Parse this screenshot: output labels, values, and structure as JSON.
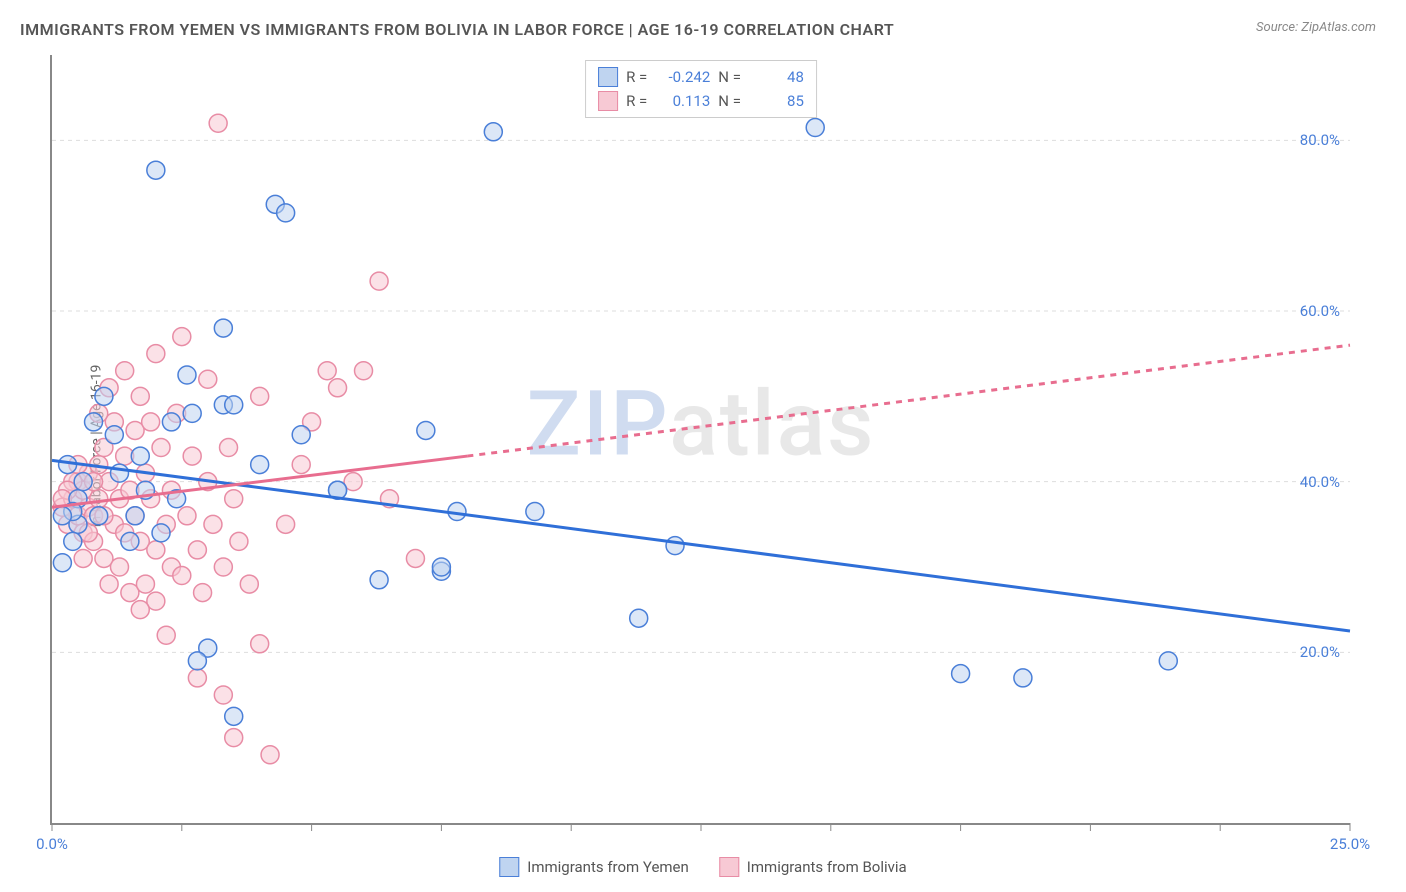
{
  "title": "IMMIGRANTS FROM YEMEN VS IMMIGRANTS FROM BOLIVIA IN LABOR FORCE | AGE 16-19 CORRELATION CHART",
  "source": "Source: ZipAtlas.com",
  "y_axis_label": "In Labor Force | Age 16-19",
  "watermark_prefix": "ZIP",
  "watermark_suffix": "atlas",
  "xlim": [
    0,
    25
  ],
  "ylim": [
    0,
    90
  ],
  "x_ticks": [
    0.0,
    25.0
  ],
  "x_tick_labels": [
    "0.0%",
    "25.0%"
  ],
  "y_ticks": [
    20.0,
    40.0,
    60.0,
    80.0
  ],
  "y_tick_labels": [
    "20.0%",
    "40.0%",
    "60.0%",
    "80.0%"
  ],
  "gridlines_y": [
    20.0,
    40.0,
    60.0,
    80.0
  ],
  "series": {
    "yemen": {
      "label": "Immigrants from Yemen",
      "color_fill": "#bfd4f0",
      "color_stroke": "#4a7fd8",
      "R": "-0.242",
      "N": "48",
      "marker_radius": 9,
      "marker_fill_alpha": 0.55,
      "trend_color": "#2f6fd8",
      "trend_solid_xrange": [
        0.0,
        25.0
      ],
      "trend_solid_yrange": [
        42.5,
        22.5
      ],
      "trend_dashed_xrange": null,
      "points": [
        [
          0.2,
          30.5
        ],
        [
          0.5,
          35.0
        ],
        [
          0.3,
          42.0
        ],
        [
          0.5,
          38.0
        ],
        [
          0.8,
          47.0
        ],
        [
          0.4,
          33.0
        ],
        [
          1.2,
          45.5
        ],
        [
          1.0,
          50.0
        ],
        [
          1.5,
          33.0
        ],
        [
          1.6,
          36.0
        ],
        [
          1.8,
          39.0
        ],
        [
          2.0,
          76.5
        ],
        [
          2.3,
          47.0
        ],
        [
          2.6,
          52.5
        ],
        [
          2.7,
          48.0
        ],
        [
          3.0,
          20.5
        ],
        [
          3.3,
          58.0
        ],
        [
          3.3,
          49.0
        ],
        [
          3.5,
          49.0
        ],
        [
          3.5,
          12.5
        ],
        [
          2.8,
          19.0
        ],
        [
          4.3,
          72.5
        ],
        [
          4.5,
          71.5
        ],
        [
          4.0,
          42.0
        ],
        [
          4.8,
          45.5
        ],
        [
          5.5,
          39.0
        ],
        [
          5.5,
          39.0
        ],
        [
          6.3,
          28.5
        ],
        [
          7.2,
          46.0
        ],
        [
          7.5,
          29.5
        ],
        [
          7.5,
          30.0
        ],
        [
          7.8,
          36.5
        ],
        [
          8.5,
          81.0
        ],
        [
          9.3,
          36.5
        ],
        [
          11.3,
          24.0
        ],
        [
          12.0,
          32.5
        ],
        [
          14.7,
          81.5
        ],
        [
          17.5,
          17.5
        ],
        [
          18.7,
          17.0
        ],
        [
          21.5,
          19.0
        ],
        [
          0.6,
          40.0
        ],
        [
          0.9,
          36.0
        ],
        [
          1.3,
          41.0
        ],
        [
          1.7,
          43.0
        ],
        [
          0.4,
          36.5
        ],
        [
          2.1,
          34.0
        ],
        [
          2.4,
          38.0
        ],
        [
          0.2,
          36.0
        ]
      ]
    },
    "bolivia": {
      "label": "Immigrants from Bolivia",
      "color_fill": "#f7c9d4",
      "color_stroke": "#e88ca5",
      "R": "0.113",
      "N": "85",
      "marker_radius": 9,
      "marker_fill_alpha": 0.55,
      "trend_color": "#e86d8f",
      "trend_solid_xrange": [
        0.0,
        8.0
      ],
      "trend_solid_yrange": [
        37.0,
        43.0
      ],
      "trend_dashed_xrange": [
        8.0,
        25.0
      ],
      "trend_dashed_yrange": [
        43.0,
        56.0
      ],
      "points": [
        [
          0.2,
          37.0
        ],
        [
          0.3,
          35.0
        ],
        [
          0.4,
          38.0
        ],
        [
          0.5,
          36.0
        ],
        [
          0.5,
          40.0
        ],
        [
          0.6,
          34.0
        ],
        [
          0.6,
          39.0
        ],
        [
          0.7,
          37.0
        ],
        [
          0.7,
          41.0
        ],
        [
          0.8,
          33.0
        ],
        [
          0.8,
          36.0
        ],
        [
          0.9,
          38.0
        ],
        [
          0.9,
          42.0
        ],
        [
          1.0,
          31.0
        ],
        [
          1.0,
          44.0
        ],
        [
          1.1,
          28.0
        ],
        [
          1.1,
          40.0
        ],
        [
          1.2,
          35.0
        ],
        [
          1.2,
          47.0
        ],
        [
          1.3,
          30.0
        ],
        [
          1.3,
          38.0
        ],
        [
          1.4,
          34.0
        ],
        [
          1.4,
          43.0
        ],
        [
          1.5,
          27.0
        ],
        [
          1.5,
          39.0
        ],
        [
          1.6,
          46.0
        ],
        [
          1.6,
          36.0
        ],
        [
          1.7,
          33.0
        ],
        [
          1.7,
          50.0
        ],
        [
          1.8,
          28.0
        ],
        [
          1.8,
          41.0
        ],
        [
          1.9,
          38.0
        ],
        [
          2.0,
          26.0
        ],
        [
          2.0,
          32.0
        ],
        [
          2.0,
          55.0
        ],
        [
          2.1,
          44.0
        ],
        [
          2.2,
          35.0
        ],
        [
          2.3,
          30.0
        ],
        [
          2.3,
          39.0
        ],
        [
          2.4,
          48.0
        ],
        [
          2.5,
          29.0
        ],
        [
          2.5,
          57.0
        ],
        [
          2.6,
          36.0
        ],
        [
          2.7,
          43.0
        ],
        [
          2.8,
          32.0
        ],
        [
          2.9,
          27.0
        ],
        [
          3.0,
          40.0
        ],
        [
          3.0,
          52.0
        ],
        [
          3.1,
          35.0
        ],
        [
          3.2,
          82.0
        ],
        [
          3.3,
          30.0
        ],
        [
          3.3,
          15.0
        ],
        [
          3.4,
          44.0
        ],
        [
          3.5,
          10.0
        ],
        [
          3.5,
          38.0
        ],
        [
          3.6,
          33.0
        ],
        [
          3.8,
          28.0
        ],
        [
          4.0,
          21.0
        ],
        [
          4.0,
          50.0
        ],
        [
          4.2,
          8.0
        ],
        [
          4.5,
          35.0
        ],
        [
          4.8,
          42.0
        ],
        [
          5.0,
          47.0
        ],
        [
          5.3,
          53.0
        ],
        [
          5.5,
          51.0
        ],
        [
          5.8,
          40.0
        ],
        [
          6.0,
          53.0
        ],
        [
          6.3,
          63.5
        ],
        [
          6.5,
          38.0
        ],
        [
          7.0,
          31.0
        ],
        [
          2.8,
          17.0
        ],
        [
          1.9,
          47.0
        ],
        [
          1.1,
          51.0
        ],
        [
          1.4,
          53.0
        ],
        [
          0.9,
          48.0
        ],
        [
          1.7,
          25.0
        ],
        [
          2.2,
          22.0
        ],
        [
          0.6,
          31.0
        ],
        [
          0.4,
          40.0
        ],
        [
          0.3,
          39.0
        ],
        [
          0.5,
          42.0
        ],
        [
          0.7,
          34.0
        ],
        [
          0.2,
          38.0
        ],
        [
          0.8,
          40.0
        ],
        [
          1.0,
          36.0
        ]
      ]
    }
  },
  "stats_legend_labels": {
    "R": "R =",
    "N": "N ="
  },
  "bottom_legend_order": [
    "yemen",
    "bolivia"
  ],
  "chart_bg": "#ffffff",
  "grid_color": "#dddddd",
  "axis_color": "#888888",
  "title_color": "#555555",
  "tick_label_color": "#4a7fd8",
  "title_fontsize": 16,
  "tick_fontsize": 15,
  "axis_label_fontsize": 14,
  "watermark_fontsize": 90
}
